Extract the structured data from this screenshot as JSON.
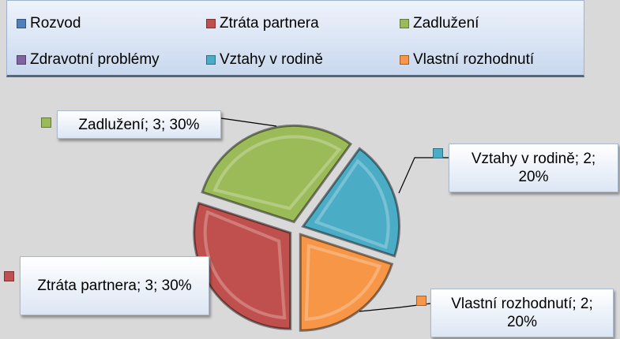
{
  "chart_data": {
    "type": "pie",
    "categories": [
      "Rozvod",
      "Ztráta partnera",
      "Zadlužení",
      "Zdravotní problémy",
      "Vztahy v rodině",
      "Vlastní rozhodnutí"
    ],
    "values": [
      0,
      3,
      3,
      0,
      2,
      2
    ],
    "value_labels": [
      null,
      "Ztráta partnera; 3; 30%",
      "Zadlužení; 3; 30%",
      null,
      "Vztahy v rodině; 2; 20%",
      "Vlastní rozhodnutí; 2; 20%"
    ],
    "colors": [
      "#4f81bd",
      "#c0504d",
      "#9bbb59",
      "#8064a2",
      "#4bacc6",
      "#f79646"
    ],
    "legend": "top"
  }
}
